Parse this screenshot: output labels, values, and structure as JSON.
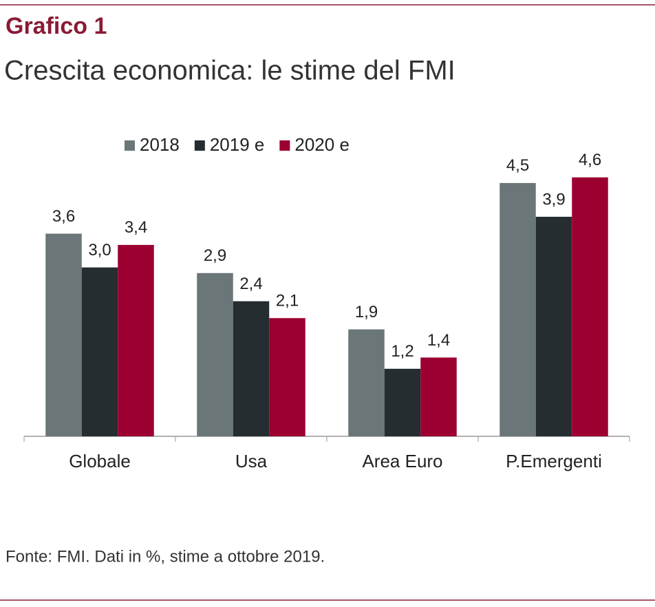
{
  "chart_data": {
    "type": "bar",
    "label": "Grafico 1",
    "title": "Crescita economica: le stime del FMI",
    "note": "Fonte: FMI. Dati in %, stime a ottobre 2019.",
    "categories": [
      "Globale",
      "Usa",
      "Area Euro",
      "P.Emergenti"
    ],
    "series": [
      {
        "name": "2018",
        "color": "#6b7679",
        "values": [
          3.6,
          2.9,
          1.9,
          4.5
        ],
        "value_labels": [
          "3,6",
          "2,9",
          "1,9",
          "4,5"
        ]
      },
      {
        "name": "2019 e",
        "color": "#262d31",
        "values": [
          3.0,
          2.4,
          1.2,
          3.9
        ],
        "value_labels": [
          "3,0",
          "2,4",
          "1,2",
          "3,9"
        ]
      },
      {
        "name": "2020 e",
        "color": "#9b0030",
        "values": [
          3.4,
          2.1,
          1.4,
          4.6
        ],
        "value_labels": [
          "3,4",
          "2,1",
          "1,4",
          "4,6"
        ]
      }
    ],
    "ylim": [
      0,
      5
    ],
    "legend": "top"
  }
}
